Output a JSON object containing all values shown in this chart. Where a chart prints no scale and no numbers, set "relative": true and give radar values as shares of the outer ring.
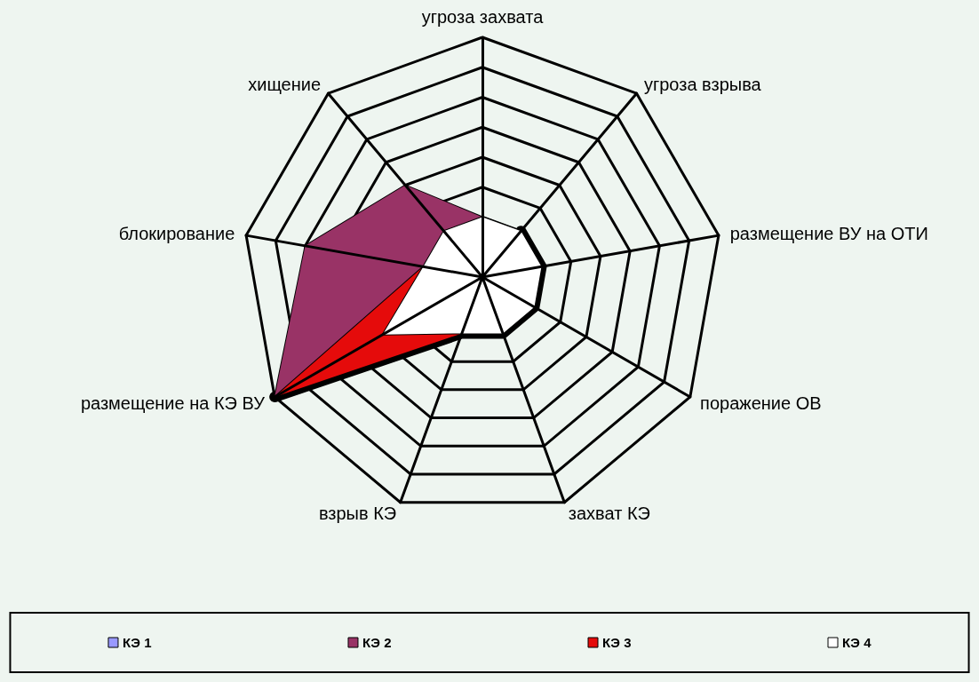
{
  "chart_data": {
    "type": "radar",
    "relative": true,
    "grid": true,
    "legend": "bottom",
    "marker": "none",
    "categories": [
      "угроза захвата",
      "угроза взрыва",
      "размещение ВУ на ОТИ",
      "поражение ОВ",
      "захват КЭ",
      "взрыв КЭ",
      "размещение на КЭ ВУ",
      "блокирование",
      "хищение"
    ],
    "series": [
      {
        "name": "КЭ 1",
        "color": "#9999ff",
        "values": [
          null,
          0.25,
          0.25,
          0.25,
          0.25,
          0.25,
          1,
          null,
          null
        ]
      },
      {
        "name": "КЭ 2",
        "color": "#993366",
        "values": [
          0.25,
          null,
          null,
          null,
          null,
          null,
          1,
          0.75,
          0.5
        ]
      },
      {
        "name": "КЭ 3",
        "color": "#e50b0b",
        "values": [
          null,
          null,
          null,
          null,
          null,
          0.25,
          1,
          0.25,
          null
        ]
      },
      {
        "name": "КЭ 4",
        "color": "#ffffff",
        "values": [
          0.25,
          0.25,
          0.25,
          0.25,
          0.25,
          0.25,
          0.48,
          0.25,
          0.25
        ]
      }
    ]
  }
}
